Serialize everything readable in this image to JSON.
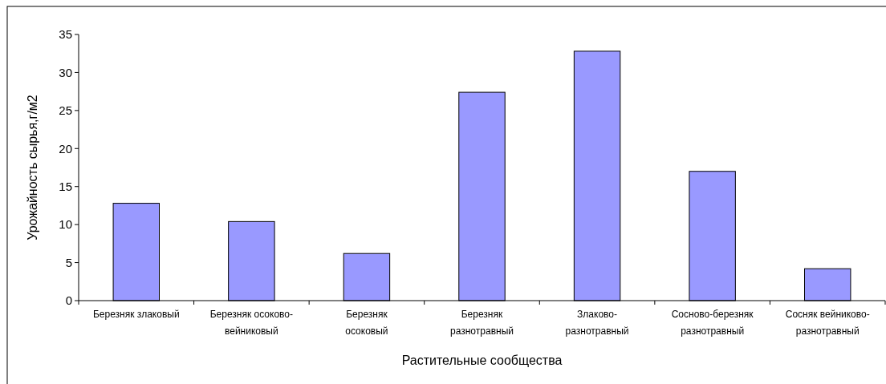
{
  "chart_data": {
    "type": "bar",
    "xlabel": "Растительные сообщества",
    "ylabel": "Урожайность сырья,г/м2",
    "categories": [
      "Березняк злаковый",
      "Березняк осоково-\nвейниковый",
      "Березняк\nосоковый",
      "Березняк\nразнотравный",
      "Злаково-\nразнотравный",
      "Сосново-березняк\nразнотравный",
      "Сосняк вейниково-\nразнотравный"
    ],
    "values": [
      12.8,
      10.4,
      6.2,
      27.4,
      32.8,
      17.0,
      4.2
    ],
    "color": "#9999ff",
    "ylim": [
      0,
      35
    ],
    "yticks": [
      0,
      5,
      10,
      15,
      20,
      25,
      30,
      35
    ],
    "grid": false
  }
}
